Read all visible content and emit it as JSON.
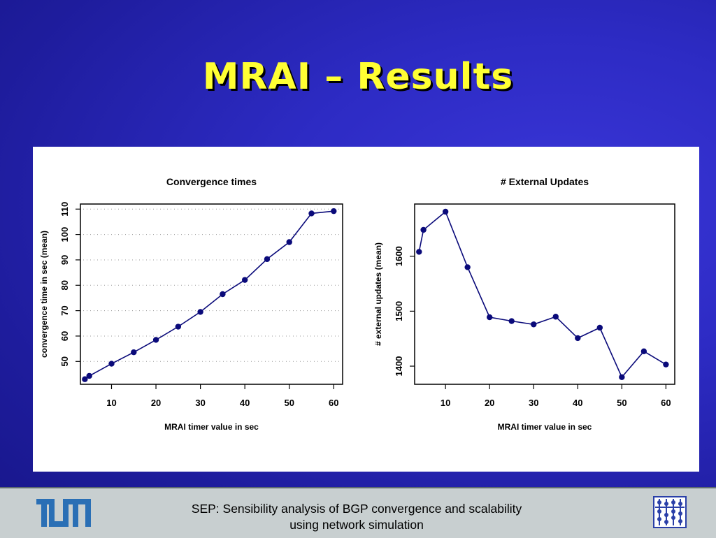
{
  "slide": {
    "title": "MRAI – Results",
    "footer_line1": "SEP: Sensibility analysis of BGP convergence and scalability",
    "footer_line2": "using network simulation",
    "title_color": "#ffff33",
    "series_color": "#0a0a7a"
  },
  "chart_data": [
    {
      "type": "line",
      "title": "Convergence times",
      "xlabel": "MRAI timer value in sec",
      "ylabel": "convergence time in sec (mean)",
      "xticks": [
        10,
        20,
        30,
        40,
        50,
        60
      ],
      "yticks": [
        50,
        60,
        70,
        80,
        90,
        100,
        110
      ],
      "xlim": [
        3,
        62
      ],
      "ylim": [
        41,
        112
      ],
      "grid": "horizontal-dotted",
      "x": [
        4,
        5,
        10,
        15,
        20,
        25,
        30,
        35,
        40,
        45,
        50,
        55,
        60
      ],
      "y": [
        43.0,
        44.3,
        49.1,
        53.6,
        58.5,
        63.7,
        69.5,
        76.5,
        82.1,
        90.3,
        97.0,
        108.3,
        109.2
      ]
    },
    {
      "type": "line",
      "title": "# External Updates",
      "xlabel": "MRAI timer value in sec",
      "ylabel": "# external updates (mean)",
      "xticks": [
        10,
        20,
        30,
        40,
        50,
        60
      ],
      "yticks": [
        1400,
        1500,
        1600
      ],
      "xlim": [
        3,
        62
      ],
      "ylim": [
        1367,
        1695
      ],
      "grid": "none",
      "x": [
        4,
        5,
        10,
        15,
        20,
        25,
        30,
        35,
        40,
        45,
        50,
        55,
        60
      ],
      "y": [
        1608,
        1648,
        1681,
        1580,
        1489,
        1482,
        1476,
        1490,
        1451,
        1470,
        1380,
        1427,
        1403
      ]
    }
  ]
}
